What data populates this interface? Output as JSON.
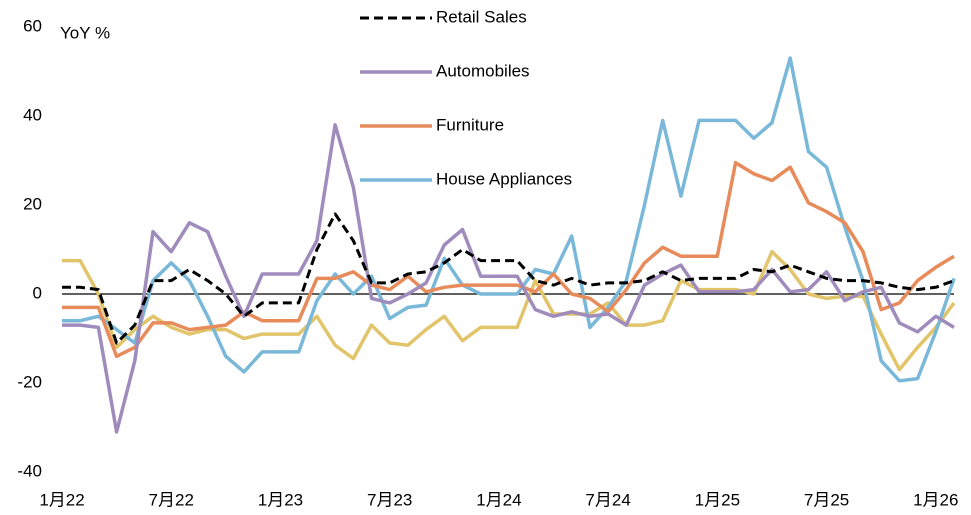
{
  "chart_data": {
    "type": "line",
    "y_label": "YoY %",
    "categories": [
      "1月22",
      null,
      null,
      null,
      null,
      null,
      "7月22",
      null,
      null,
      null,
      null,
      null,
      "1月23",
      null,
      null,
      null,
      null,
      null,
      "7月23",
      null,
      null,
      null,
      null,
      null,
      "1月24",
      null,
      null,
      null,
      null,
      null,
      "7月24",
      null,
      null,
      null,
      null,
      null,
      "1月25",
      null,
      null,
      null,
      null,
      null,
      "7月25",
      null,
      null,
      null,
      null,
      null,
      "1月26",
      null
    ],
    "series": [
      {
        "name": "Retail Sales",
        "color": "#000000",
        "dashed": true,
        "values": [
          1.5,
          1.5,
          1,
          -11,
          -7,
          3,
          3,
          5.5,
          3,
          0,
          -5,
          -2,
          -2,
          -2,
          10,
          18,
          12,
          2.5,
          2.5,
          4.5,
          5,
          7,
          10,
          7.5,
          7.5,
          7.5,
          3,
          2,
          3.5,
          2,
          2.5,
          2.5,
          3,
          5,
          3,
          3.5,
          3.5,
          3.5,
          5.5,
          5,
          6.5,
          5,
          3.5,
          3,
          3,
          2.5,
          1.5,
          1,
          1.5,
          3
        ]
      },
      {
        "name": "Automobiles",
        "color": "#a08cbc",
        "dashed": false,
        "values": [
          -7,
          -7,
          -7.5,
          -31,
          -15,
          14,
          9.5,
          16,
          14,
          4,
          -5,
          4.5,
          4.5,
          4.5,
          12,
          38,
          24,
          -1,
          -2,
          0,
          2.5,
          11,
          14.5,
          4,
          4,
          4,
          -3.5,
          -5,
          -4,
          -5,
          -4.5,
          -7,
          2,
          4.5,
          6.5,
          0.5,
          0.5,
          0.5,
          1,
          5.5,
          0.5,
          1,
          5,
          -1.5,
          0.5,
          1.5,
          -6.5,
          -8.5,
          -5,
          -7.5
        ]
      },
      {
        "name": "Furniture",
        "color": "#e88b5a",
        "dashed": false,
        "values": [
          -3,
          -3,
          -3,
          -14,
          -12,
          -6.5,
          -6.5,
          -8,
          -7.5,
          -7,
          -4,
          -6,
          -6,
          -6,
          3.5,
          3.5,
          5,
          2,
          1,
          4,
          0.5,
          1.5,
          2,
          2,
          2,
          2,
          0.5,
          4.5,
          0,
          -1,
          -4,
          1,
          7,
          10.5,
          8.5,
          8.5,
          8.5,
          29.5,
          27,
          25.5,
          28.5,
          20.5,
          18.5,
          16,
          9.5,
          -3.5,
          -2,
          3,
          6,
          8.5
        ]
      },
      {
        "name": "House Appliances",
        "color": "#7ab8d9",
        "dashed": false,
        "values": [
          -6,
          -6,
          -5,
          -8,
          -11,
          3,
          7,
          3,
          -5,
          -14,
          -17.5,
          -13,
          -13,
          -13,
          -1.5,
          4.5,
          0,
          4,
          -5.5,
          -3,
          -2.5,
          8,
          2,
          0,
          0,
          0,
          5.5,
          4.5,
          13,
          -7.5,
          -3,
          3,
          20,
          39,
          22,
          39,
          39,
          39,
          35,
          38.5,
          53,
          32,
          28.5,
          15,
          3,
          -15,
          -19.5,
          -19,
          -8.5,
          3.5
        ]
      },
      {
        "color": "#e2c46a",
        "dashed": false,
        "values": [
          7.5,
          7.5,
          0,
          -12,
          -8,
          -5,
          -7.5,
          -9,
          -8,
          -8,
          -10,
          -9,
          -9,
          -9,
          -5,
          -11.5,
          -14.5,
          -7,
          -11,
          -11.5,
          -8,
          -5,
          -10.5,
          -7.5,
          -7.5,
          -7.5,
          3,
          -4.5,
          -4.5,
          -4.5,
          -2,
          -7,
          -7,
          -6,
          3,
          1,
          1,
          1,
          0,
          9.5,
          5.5,
          0,
          -1,
          -0.5,
          -0.5,
          -9,
          -17,
          -12,
          -7.5,
          -2
        ]
      }
    ],
    "ylim": [
      -40,
      60
    ],
    "yticks": [
      -40,
      -20,
      0,
      20,
      40,
      60
    ],
    "zero_line": true,
    "grid": false,
    "legend": "top-center"
  }
}
